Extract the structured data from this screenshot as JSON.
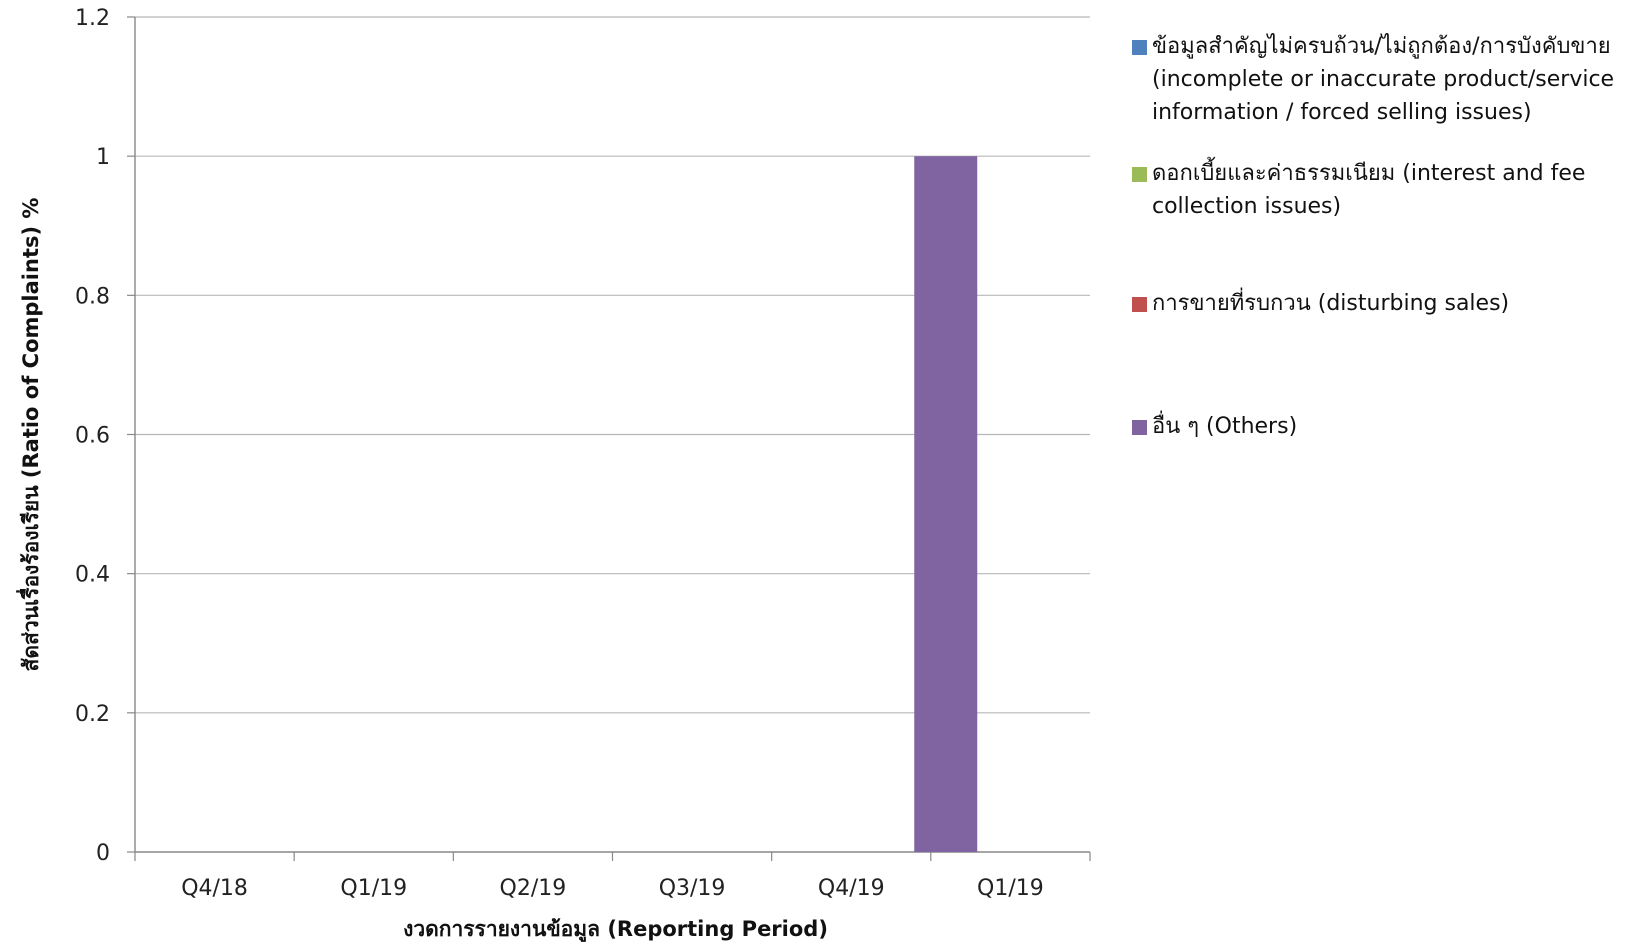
{
  "chart_data": {
    "type": "bar",
    "title": "",
    "xlabel": "งวดการรายงานข้อมูล (Reporting Period)",
    "ylabel": "สัดส่วนเรื่องร้องเรียน (Ratio of Complaints) %",
    "categories": [
      "Q4/18",
      "Q1/19",
      "Q2/19",
      "Q3/19",
      "Q4/19",
      "Q1/19"
    ],
    "ylim": [
      0,
      1.2
    ],
    "yticks": [
      0,
      0.2,
      0.4,
      0.6,
      0.8,
      1,
      1.2
    ],
    "grid": true,
    "legend_position": "right",
    "series": [
      {
        "name": "ข้อมูลสำคัญไม่ครบถ้วน/ไม่ถูกต้อง/การบังคับขาย (incomplete or inaccurate product/service information / forced selling issues)",
        "color": "#4F81BD",
        "values": [
          0,
          0,
          0,
          0,
          0,
          0
        ]
      },
      {
        "name": "ดอกเบี้ยและค่าธรรมเนียม (interest and fee collection issues)",
        "color": "#9BBB59",
        "values": [
          0,
          0,
          0,
          0,
          0,
          0
        ]
      },
      {
        "name": "การขายที่รบกวน (disturbing sales)",
        "color": "#C0504D",
        "values": [
          0,
          0,
          0,
          0,
          0,
          0
        ]
      },
      {
        "name": "อื่น ๆ (Others)",
        "color": "#8064A2",
        "values": [
          0,
          0,
          0,
          0,
          1,
          0
        ]
      }
    ]
  }
}
